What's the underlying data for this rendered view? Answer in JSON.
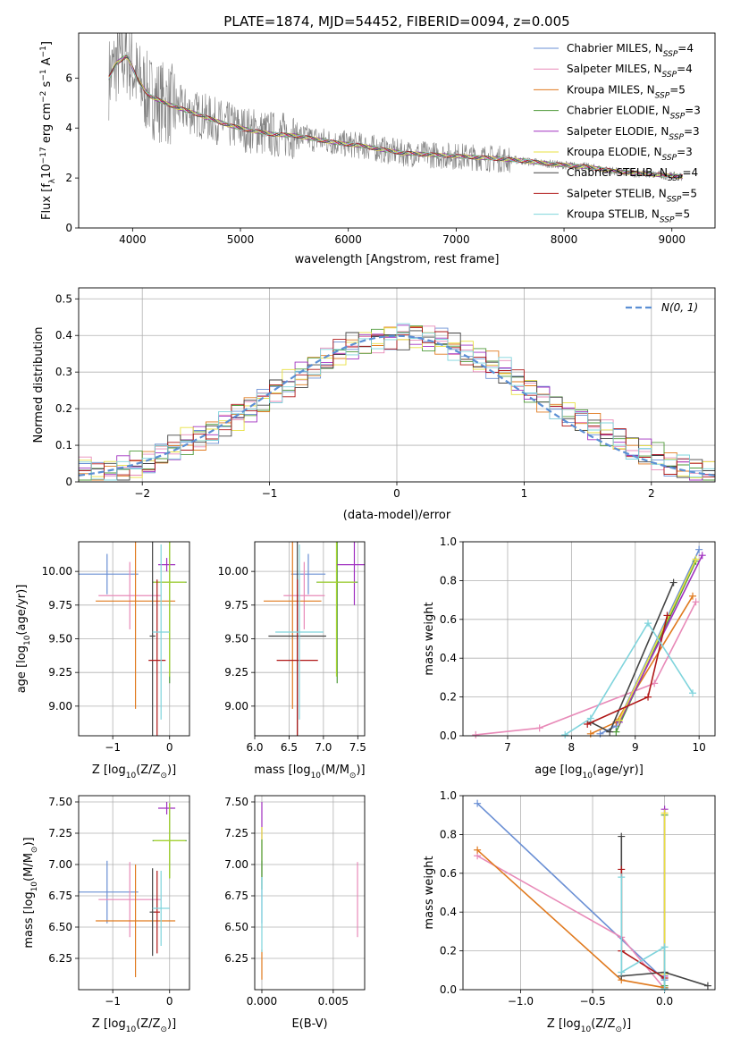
{
  "figure_title": "PLATE=1874, MJD=54452, FIBERID=0094, z=0.005",
  "colors": {
    "Chabrier MILES": "#6a8fd4",
    "Salpeter MILES": "#e88ab8",
    "Kroupa MILES": "#e07a1f",
    "Chabrier ELODIE": "#4f9a3a",
    "Salpeter ELODIE": "#a030c0",
    "Kroupa ELODIE": "#e8e040",
    "Chabrier STELIB": "#444444",
    "Salpeter STELIB": "#b01818",
    "Kroupa STELIB": "#7fd4dc",
    "Kroupa ELODIE lime": "#a8d430"
  },
  "chart_data": [
    {
      "id": "spectrum",
      "type": "line",
      "title": "PLATE=1874, MJD=54452, FIBERID=0094, z=0.005",
      "xlabel": "wavelength [Angstrom, rest frame]",
      "ylabel_parts": [
        "Flux [",
        "f",
        "λ",
        "10",
        "−17",
        " erg cm",
        "−2",
        " s",
        "−1",
        " A",
        "−1",
        "]"
      ],
      "xlim": [
        3500,
        9400
      ],
      "ylim": [
        0,
        7.8
      ],
      "xticks": [
        4000,
        5000,
        6000,
        7000,
        8000,
        9000
      ],
      "yticks": [
        0,
        2,
        4,
        6
      ],
      "data_color": "#808080",
      "model_points": [
        [
          3780,
          6.0
        ],
        [
          3850,
          6.6
        ],
        [
          3950,
          6.9
        ],
        [
          4050,
          5.9
        ],
        [
          4150,
          5.3
        ],
        [
          4300,
          5.0
        ],
        [
          4500,
          4.7
        ],
        [
          4700,
          4.4
        ],
        [
          4900,
          4.1
        ],
        [
          5100,
          3.9
        ],
        [
          5300,
          3.75
        ],
        [
          5500,
          3.7
        ],
        [
          5700,
          3.55
        ],
        [
          5900,
          3.4
        ],
        [
          6100,
          3.3
        ],
        [
          6300,
          3.15
        ],
        [
          6500,
          3.0
        ],
        [
          6700,
          2.95
        ],
        [
          6900,
          2.9
        ],
        [
          7100,
          2.85
        ],
        [
          7300,
          2.8
        ],
        [
          7600,
          2.7
        ],
        [
          7900,
          2.55
        ],
        [
          8200,
          2.45
        ],
        [
          8500,
          2.25
        ],
        [
          8800,
          2.15
        ],
        [
          9100,
          2.05
        ]
      ],
      "legend_entries": [
        {
          "name": "Chabrier MILES",
          "n": "4"
        },
        {
          "name": "Salpeter MILES",
          "n": "4"
        },
        {
          "name": "Kroupa MILES",
          "n": "5"
        },
        {
          "name": "Chabrier ELODIE",
          "n": "3"
        },
        {
          "name": "Salpeter ELODIE",
          "n": "3"
        },
        {
          "name": "Kroupa ELODIE",
          "n": "3"
        },
        {
          "name": "Chabrier STELIB",
          "n": "4"
        },
        {
          "name": "Salpeter STELIB",
          "n": "5"
        },
        {
          "name": "Kroupa STELIB",
          "n": "5"
        }
      ],
      "legend_n_label": "N",
      "legend_n_sub": "SSP",
      "legend_position": "right"
    },
    {
      "id": "residuals",
      "type": "line",
      "xlabel": "(data-model)/error",
      "ylabel": "Normed distribution",
      "xlim": [
        -2.5,
        2.5
      ],
      "ylim": [
        0,
        0.53
      ],
      "xticks": [
        -2,
        -1,
        0,
        1,
        2
      ],
      "yticks": [
        0.0,
        0.1,
        0.2,
        0.3,
        0.4,
        0.5
      ],
      "bin_width": 0.1,
      "bin_start": -2.5,
      "hist_values": [
        0.035,
        0.025,
        0.03,
        0.035,
        0.045,
        0.05,
        0.07,
        0.09,
        0.11,
        0.12,
        0.14,
        0.16,
        0.18,
        0.2,
        0.22,
        0.25,
        0.27,
        0.29,
        0.31,
        0.33,
        0.35,
        0.37,
        0.38,
        0.39,
        0.4,
        0.4,
        0.4,
        0.39,
        0.38,
        0.37,
        0.35,
        0.33,
        0.32,
        0.3,
        0.27,
        0.25,
        0.23,
        0.21,
        0.19,
        0.17,
        0.15,
        0.13,
        0.11,
        0.09,
        0.08,
        0.07,
        0.05,
        0.04,
        0.03,
        0.025
      ],
      "gauss_label": "N(0, 1)",
      "gauss_color": "#5b8fd4",
      "legend_position": "top-right"
    },
    {
      "id": "age_z",
      "type": "scatter",
      "xlabel_parts": [
        "Z [log",
        "10",
        "(Z/Z",
        "⊙",
        ")]"
      ],
      "ylabel_parts": [
        "age  [log",
        "10",
        "(age/yr)]"
      ],
      "xlim": [
        -1.6,
        0.35
      ],
      "ylim": [
        8.78,
        10.22
      ],
      "xticks": [
        -1,
        0
      ],
      "yticks": [
        9.0,
        9.25,
        9.5,
        9.75,
        10.0
      ],
      "ytick_labels": [
        "9.00",
        "9.25",
        "9.50",
        "9.75",
        "10.00"
      ],
      "points": [
        {
          "series": "Chabrier MILES",
          "x": -1.1,
          "y": 9.98,
          "xerr": 0.55,
          "yerr": 0.15
        },
        {
          "series": "Salpeter MILES",
          "x": -0.7,
          "y": 9.82,
          "xerr": 0.55,
          "yerr": 0.25
        },
        {
          "series": "Kroupa MILES",
          "x": -0.6,
          "y": 9.78,
          "xerr": 0.7,
          "yerr": 0.8
        },
        {
          "series": "Chabrier ELODIE",
          "x": 0.0,
          "y": 9.92,
          "xerr": 0.3,
          "yerr": 0.75
        },
        {
          "series": "Salpeter ELODIE",
          "x": -0.05,
          "y": 10.05,
          "xerr": 0.15,
          "yerr": 0.05
        },
        {
          "series": "Kroupa ELODIE lime",
          "x": 0.0,
          "y": 9.92,
          "xerr": 0.28,
          "yerr": 0.7
        },
        {
          "series": "Chabrier STELIB",
          "x": -0.3,
          "y": 9.52,
          "xerr": 0.05,
          "yerr": 0.8
        },
        {
          "series": "Salpeter STELIB",
          "x": -0.22,
          "y": 9.34,
          "xerr": 0.15,
          "yerr": 0.6
        },
        {
          "series": "Kroupa STELIB",
          "x": -0.15,
          "y": 9.55,
          "xerr": 0.15,
          "yerr": 0.65
        }
      ]
    },
    {
      "id": "age_mass",
      "type": "scatter",
      "xlabel_parts": [
        "mass [log",
        "10",
        "(M/M",
        "⊙",
        ")]"
      ],
      "xlim": [
        6.0,
        7.6
      ],
      "ylim": [
        8.78,
        10.22
      ],
      "xticks": [
        6.0,
        6.5,
        7.0,
        7.5
      ],
      "xtick_labels": [
        "6.0",
        "6.5",
        "7.0",
        "7.5"
      ],
      "yticks": [
        9.0,
        9.25,
        9.5,
        9.75,
        10.0
      ],
      "ytick_labels": [
        "9.00",
        "9.25",
        "9.50",
        "9.75",
        "10.00"
      ],
      "points": [
        {
          "series": "Chabrier MILES",
          "x": 6.78,
          "y": 9.98,
          "xerr": 0.25,
          "yerr": 0.15
        },
        {
          "series": "Salpeter MILES",
          "x": 6.72,
          "y": 9.82,
          "xerr": 0.3,
          "yerr": 0.25
        },
        {
          "series": "Kroupa MILES",
          "x": 6.55,
          "y": 9.78,
          "xerr": 0.42,
          "yerr": 0.8
        },
        {
          "series": "Chabrier ELODIE",
          "x": 7.2,
          "y": 9.92,
          "xerr": 0.3,
          "yerr": 0.75
        },
        {
          "series": "Salpeter ELODIE",
          "x": 7.45,
          "y": 10.05,
          "xerr": 0.25,
          "yerr": 0.3
        },
        {
          "series": "Kroupa ELODIE lime",
          "x": 7.19,
          "y": 9.92,
          "xerr": 0.28,
          "yerr": 0.7
        },
        {
          "series": "Chabrier STELIB",
          "x": 6.62,
          "y": 9.52,
          "xerr": 0.42,
          "yerr": 0.8
        },
        {
          "series": "Salpeter STELIB",
          "x": 6.62,
          "y": 9.34,
          "xerr": 0.3,
          "yerr": 0.6
        },
        {
          "series": "Kroupa STELIB",
          "x": 6.65,
          "y": 9.55,
          "xerr": 0.35,
          "yerr": 0.65
        }
      ]
    },
    {
      "id": "weight_age",
      "type": "line",
      "xlabel_parts": [
        "age  [log",
        "10",
        "(age/yr)]"
      ],
      "ylabel": "mass weight",
      "xlim": [
        6.3,
        10.25
      ],
      "ylim": [
        0.0,
        1.0
      ],
      "xticks": [
        7,
        8,
        9,
        10
      ],
      "yticks": [
        0.0,
        0.2,
        0.4,
        0.6,
        0.8,
        1.0
      ],
      "ytick_labels": [
        "0.0",
        "0.2",
        "0.4",
        "0.6",
        "0.8",
        "1.0"
      ],
      "series": [
        {
          "name": "Chabrier MILES",
          "x": [
            8.45,
            8.7,
            10.0
          ],
          "y": [
            0.01,
            0.05,
            0.96
          ]
        },
        {
          "name": "Salpeter MILES",
          "x": [
            6.5,
            7.5,
            9.3,
            9.95
          ],
          "y": [
            0.005,
            0.04,
            0.27,
            0.69
          ]
        },
        {
          "name": "Kroupa MILES",
          "x": [
            8.3,
            8.7,
            9.9
          ],
          "y": [
            0.01,
            0.07,
            0.72
          ]
        },
        {
          "name": "Chabrier ELODIE",
          "x": [
            8.7,
            9.95
          ],
          "y": [
            0.02,
            0.9
          ]
        },
        {
          "name": "Salpeter ELODIE",
          "x": [
            8.75,
            10.05
          ],
          "y": [
            0.07,
            0.93
          ]
        },
        {
          "name": "Kroupa ELODIE",
          "x": [
            8.75,
            9.95
          ],
          "y": [
            0.08,
            0.91
          ]
        },
        {
          "name": "Chabrier STELIB",
          "x": [
            8.3,
            8.6,
            9.6
          ],
          "y": [
            0.07,
            0.02,
            0.79
          ]
        },
        {
          "name": "Salpeter STELIB",
          "x": [
            8.25,
            9.2,
            9.5
          ],
          "y": [
            0.06,
            0.2,
            0.62
          ]
        },
        {
          "name": "Kroupa STELIB",
          "x": [
            7.9,
            8.3,
            9.2,
            9.9
          ],
          "y": [
            0.005,
            0.09,
            0.58,
            0.22
          ]
        }
      ]
    },
    {
      "id": "mass_z",
      "type": "scatter",
      "xlabel_parts": [
        "Z [log",
        "10",
        "(Z/Z",
        "⊙",
        ")]"
      ],
      "ylabel_parts": [
        "mass [log",
        "10",
        "(M/M",
        "⊙",
        ")]"
      ],
      "xlim": [
        -1.6,
        0.35
      ],
      "ylim": [
        6.0,
        7.55
      ],
      "xticks": [
        -1,
        0
      ],
      "yticks": [
        6.25,
        6.5,
        6.75,
        7.0,
        7.25,
        7.5
      ],
      "ytick_labels": [
        "6.25",
        "6.50",
        "6.75",
        "7.00",
        "7.25",
        "7.50"
      ],
      "points": [
        {
          "series": "Chabrier MILES",
          "x": -1.1,
          "y": 6.78,
          "xerr": 0.55,
          "yerr": 0.25
        },
        {
          "series": "Salpeter MILES",
          "x": -0.7,
          "y": 6.72,
          "xerr": 0.55,
          "yerr": 0.3
        },
        {
          "series": "Kroupa MILES",
          "x": -0.6,
          "y": 6.55,
          "xerr": 0.7,
          "yerr": 0.45
        },
        {
          "series": "Chabrier ELODIE",
          "x": 0.0,
          "y": 7.19,
          "xerr": 0.3,
          "yerr": 0.3
        },
        {
          "series": "Salpeter ELODIE",
          "x": -0.05,
          "y": 7.45,
          "xerr": 0.15,
          "yerr": 0.05
        },
        {
          "series": "Kroupa ELODIE lime",
          "x": 0.0,
          "y": 7.19,
          "xerr": 0.28,
          "yerr": 0.3
        },
        {
          "series": "Chabrier STELIB",
          "x": -0.3,
          "y": 6.62,
          "xerr": 0.05,
          "yerr": 0.35
        },
        {
          "series": "Salpeter STELIB",
          "x": -0.22,
          "y": 6.62,
          "xerr": 0.05,
          "yerr": 0.33
        },
        {
          "series": "Kroupa STELIB",
          "x": -0.15,
          "y": 6.65,
          "xerr": 0.15,
          "yerr": 0.3
        }
      ]
    },
    {
      "id": "mass_ebv",
      "type": "scatter",
      "xlabel": "E(B-V)",
      "xlim": [
        -0.0005,
        0.0072
      ],
      "ylim": [
        6.0,
        7.55
      ],
      "xticks": [
        0.0,
        0.005
      ],
      "xtick_labels": [
        "0.000",
        "0.005"
      ],
      "yticks": [
        6.25,
        6.5,
        6.75,
        7.0,
        7.25,
        7.5
      ],
      "ytick_labels": [
        "6.25",
        "6.50",
        "6.75",
        "7.00",
        "7.25",
        "7.50"
      ],
      "points": [
        {
          "series": "Chabrier MILES",
          "x": 0.0,
          "y": 6.78,
          "xerr": 0.0,
          "yerr": 0.25
        },
        {
          "series": "Salpeter MILES",
          "x": 0.0067,
          "y": 6.72,
          "xerr": 0.0,
          "yerr": 0.3
        },
        {
          "series": "Kroupa MILES",
          "x": 0.0,
          "y": 6.2,
          "xerr": 0.0,
          "yerr": 0.12
        },
        {
          "series": "Salpeter ELODIE",
          "x": 0.0,
          "y": 7.35,
          "xerr": 0.0,
          "yerr": 0.15
        },
        {
          "series": "Kroupa ELODIE",
          "x": 0.0,
          "y": 7.1,
          "xerr": 0.0,
          "yerr": 0.2
        },
        {
          "series": "Chabrier ELODIE",
          "x": 0.0,
          "y": 7.0,
          "xerr": 0.0,
          "yerr": 0.2
        },
        {
          "series": "Kroupa STELIB",
          "x": 0.0,
          "y": 6.6,
          "xerr": 0.0,
          "yerr": 0.3
        }
      ]
    },
    {
      "id": "weight_z",
      "type": "line",
      "xlabel_parts": [
        "Z [log",
        "10",
        "(Z/Z",
        "⊙",
        ")]"
      ],
      "ylabel": "mass weight",
      "xlim": [
        -1.4,
        0.35
      ],
      "ylim": [
        0.0,
        1.0
      ],
      "xticks": [
        -1.0,
        -0.5,
        0.0
      ],
      "xtick_labels": [
        "−1.0",
        "−0.5",
        "0.0"
      ],
      "yticks": [
        0.0,
        0.2,
        0.4,
        0.6,
        0.8,
        1.0
      ],
      "ytick_labels": [
        "0.0",
        "0.2",
        "0.4",
        "0.6",
        "0.8",
        "1.0"
      ],
      "series": [
        {
          "name": "Chabrier MILES",
          "x": [
            -1.3,
            0.0,
            0.0
          ],
          "y": [
            0.96,
            0.05,
            0.01
          ]
        },
        {
          "name": "Salpeter MILES",
          "x": [
            -1.3,
            -0.3,
            0.0
          ],
          "y": [
            0.69,
            0.27,
            0.005
          ]
        },
        {
          "name": "Kroupa MILES",
          "x": [
            -1.3,
            -0.3,
            0.0
          ],
          "y": [
            0.72,
            0.05,
            0.01
          ]
        },
        {
          "name": "Chabrier ELODIE",
          "x": [
            0.0,
            0.0
          ],
          "y": [
            0.9,
            0.02
          ]
        },
        {
          "name": "Salpeter ELODIE",
          "x": [
            0.0,
            0.0
          ],
          "y": [
            0.93,
            0.07
          ]
        },
        {
          "name": "Kroupa ELODIE",
          "x": [
            0.0,
            0.0
          ],
          "y": [
            0.91,
            0.08
          ]
        },
        {
          "name": "Chabrier STELIB",
          "x": [
            -0.3,
            -0.3,
            0.0,
            0.3
          ],
          "y": [
            0.79,
            0.07,
            0.09,
            0.02
          ]
        },
        {
          "name": "Salpeter STELIB",
          "x": [
            -0.3,
            -0.3,
            0.0
          ],
          "y": [
            0.62,
            0.2,
            0.06
          ]
        },
        {
          "name": "Kroupa STELIB",
          "x": [
            -0.3,
            -0.3,
            0.0,
            0.0
          ],
          "y": [
            0.58,
            0.09,
            0.22,
            0.005
          ]
        }
      ]
    }
  ]
}
